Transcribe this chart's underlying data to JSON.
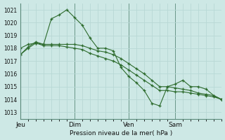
{
  "bg_color": "#cde8e5",
  "grid_color": "#b8d8d5",
  "line_color": "#2d6b2d",
  "marker_color": "#2d6b2d",
  "xlabel_text": "Pression niveau de la mer( hPa )",
  "ylim": [
    1012.5,
    1021.5
  ],
  "yticks": [
    1013,
    1014,
    1015,
    1016,
    1017,
    1018,
    1019,
    1020,
    1021
  ],
  "xtick_labels": [
    "Jeu",
    "Dim",
    "Ven",
    "Sam"
  ],
  "xtick_positions": [
    0,
    7,
    14,
    20
  ],
  "total_points": 27,
  "series1_x": [
    0,
    1,
    2,
    3,
    4,
    5,
    6,
    7,
    8,
    9,
    10,
    11,
    12,
    13,
    14,
    15,
    16,
    17,
    18,
    19,
    20,
    21,
    22,
    23,
    24,
    25,
    26
  ],
  "series1_y": [
    1017.5,
    1018.1,
    1018.5,
    1018.3,
    1020.3,
    1020.6,
    1021.0,
    1020.4,
    1019.8,
    1018.8,
    1018.0,
    1018.0,
    1017.8,
    1016.5,
    1015.8,
    1015.3,
    1014.7,
    1013.7,
    1013.5,
    1015.0,
    1015.2,
    1015.5,
    1015.0,
    1015.0,
    1014.8,
    1014.3,
    1014.0
  ],
  "series2_x": [
    0,
    1,
    2,
    3,
    4,
    5,
    6,
    7,
    8,
    9,
    10,
    11,
    12,
    13,
    14,
    15,
    16,
    17,
    18,
    19,
    20,
    21,
    22,
    23,
    24,
    25,
    26
  ],
  "series2_y": [
    1018.0,
    1018.3,
    1018.4,
    1018.3,
    1018.3,
    1018.3,
    1018.3,
    1018.3,
    1018.2,
    1018.0,
    1017.8,
    1017.7,
    1017.5,
    1017.2,
    1016.8,
    1016.4,
    1016.0,
    1015.5,
    1015.0,
    1015.0,
    1014.9,
    1014.8,
    1014.7,
    1014.5,
    1014.4,
    1014.3,
    1014.0
  ],
  "series3_x": [
    0,
    1,
    2,
    3,
    4,
    5,
    6,
    7,
    8,
    9,
    10,
    11,
    12,
    13,
    14,
    15,
    16,
    17,
    18,
    19,
    20,
    21,
    22,
    23,
    24,
    25,
    26
  ],
  "series3_y": [
    1017.5,
    1018.0,
    1018.4,
    1018.2,
    1018.2,
    1018.2,
    1018.1,
    1018.0,
    1017.9,
    1017.6,
    1017.4,
    1017.2,
    1017.0,
    1016.7,
    1016.3,
    1015.9,
    1015.5,
    1015.1,
    1014.7,
    1014.7,
    1014.6,
    1014.6,
    1014.5,
    1014.4,
    1014.3,
    1014.2,
    1014.0
  ],
  "vline_positions": [
    0,
    7,
    14,
    20
  ],
  "vline_color": "#5a8a7a",
  "spine_color": "#5a8a7a"
}
